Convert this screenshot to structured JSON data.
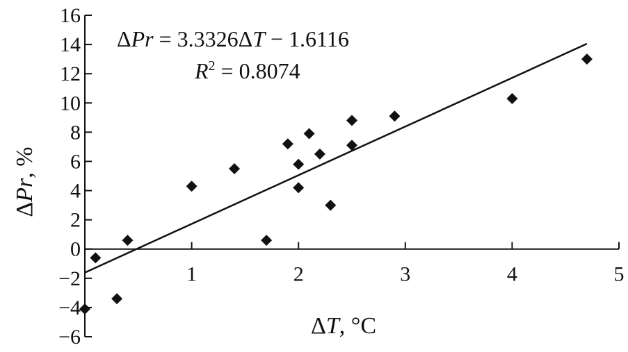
{
  "chart_data": {
    "type": "scatter",
    "title": "",
    "xlabel": "ΔT, °C",
    "ylabel": "ΔPr, %",
    "xlim": [
      0,
      5
    ],
    "ylim": [
      -6,
      16
    ],
    "x_ticks": [
      1,
      2,
      3,
      4,
      5
    ],
    "x_tick_labels": [
      "1",
      "2",
      "3",
      "4",
      "5"
    ],
    "y_ticks": [
      -6,
      -4,
      -2,
      0,
      2,
      4,
      6,
      8,
      10,
      12,
      14,
      16
    ],
    "y_tick_labels": [
      "−6",
      "−4",
      "−2",
      "0",
      "2",
      "4",
      "6",
      "8",
      "10",
      "12",
      "14",
      "16"
    ],
    "grid": false,
    "series": [
      {
        "marker": "diamond",
        "color": "#111111",
        "points": [
          {
            "x": 0.0,
            "y": -4.1
          },
          {
            "x": 0.1,
            "y": -0.6
          },
          {
            "x": 0.3,
            "y": -3.4
          },
          {
            "x": 0.4,
            "y": 0.6
          },
          {
            "x": 1.0,
            "y": 4.3
          },
          {
            "x": 1.4,
            "y": 5.5
          },
          {
            "x": 1.7,
            "y": 0.6
          },
          {
            "x": 1.9,
            "y": 7.2
          },
          {
            "x": 2.0,
            "y": 5.8
          },
          {
            "x": 2.0,
            "y": 4.2
          },
          {
            "x": 2.1,
            "y": 7.9
          },
          {
            "x": 2.2,
            "y": 6.5
          },
          {
            "x": 2.3,
            "y": 3.0
          },
          {
            "x": 2.5,
            "y": 8.8
          },
          {
            "x": 2.5,
            "y": 7.1
          },
          {
            "x": 2.9,
            "y": 9.1
          },
          {
            "x": 4.0,
            "y": 10.3
          },
          {
            "x": 4.7,
            "y": 13.0
          }
        ]
      }
    ],
    "trendline": {
      "slope": 3.3326,
      "intercept": -1.6116,
      "x_range": [
        0,
        4.7
      ],
      "equation_label": "ΔPr = 3.3326ΔT − 1.6116",
      "r2_label": "R2 = 0.8074"
    }
  }
}
